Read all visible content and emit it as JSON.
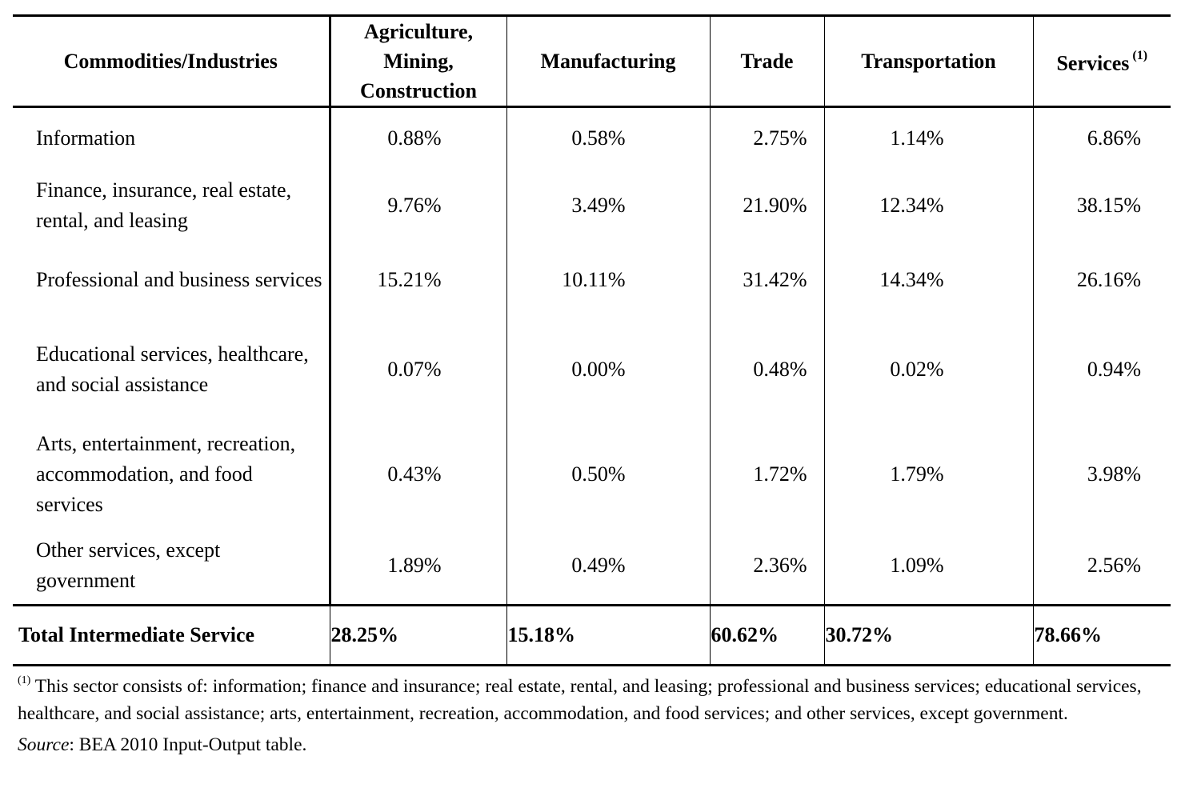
{
  "table": {
    "headers": [
      "Commodities/Industries",
      "Agriculture, Mining, Construction",
      "Manufacturing",
      "Trade",
      "Transportation",
      "Services"
    ],
    "header_lines": {
      "agriculture": [
        "Agriculture,",
        "Mining,",
        "Construction"
      ]
    },
    "services_footnote_marker": "(1)",
    "rows": [
      {
        "label": "Information",
        "values": [
          "0.88%",
          "0.58%",
          "2.75%",
          "1.14%",
          "6.86%"
        ]
      },
      {
        "label": "Finance, insurance, real estate, rental, and leasing",
        "values": [
          "9.76%",
          "3.49%",
          "21.90%",
          "12.34%",
          "38.15%"
        ]
      },
      {
        "label": "Professional and business services",
        "values": [
          "15.21%",
          "10.11%",
          "31.42%",
          "14.34%",
          "26.16%"
        ]
      },
      {
        "label": "Educational services, healthcare, and social assistance",
        "values": [
          "0.07%",
          "0.00%",
          "0.48%",
          "0.02%",
          "0.94%"
        ]
      },
      {
        "label": "Arts, entertainment, recreation, accommodation, and food services",
        "values": [
          "0.43%",
          "0.50%",
          "1.72%",
          "1.79%",
          "3.98%"
        ]
      },
      {
        "label": "Other services, except government",
        "values": [
          "1.89%",
          "0.49%",
          "2.36%",
          "1.09%",
          "2.56%"
        ]
      }
    ],
    "total": {
      "label": "Total Intermediate Service",
      "values": [
        "28.25%",
        "15.18%",
        "60.62%",
        "30.72%",
        "78.66%"
      ]
    }
  },
  "notes": {
    "footnote_marker": "(1)",
    "footnote_text": " This sector consists of: information; finance and insurance; real estate, rental, and leasing; professional and business services; educational services, healthcare, and social assistance; arts, entertainment, recreation, accommodation, and food services; and other services, except government.",
    "source_label": "Source",
    "source_text": ": BEA 2010 Input-Output table."
  }
}
